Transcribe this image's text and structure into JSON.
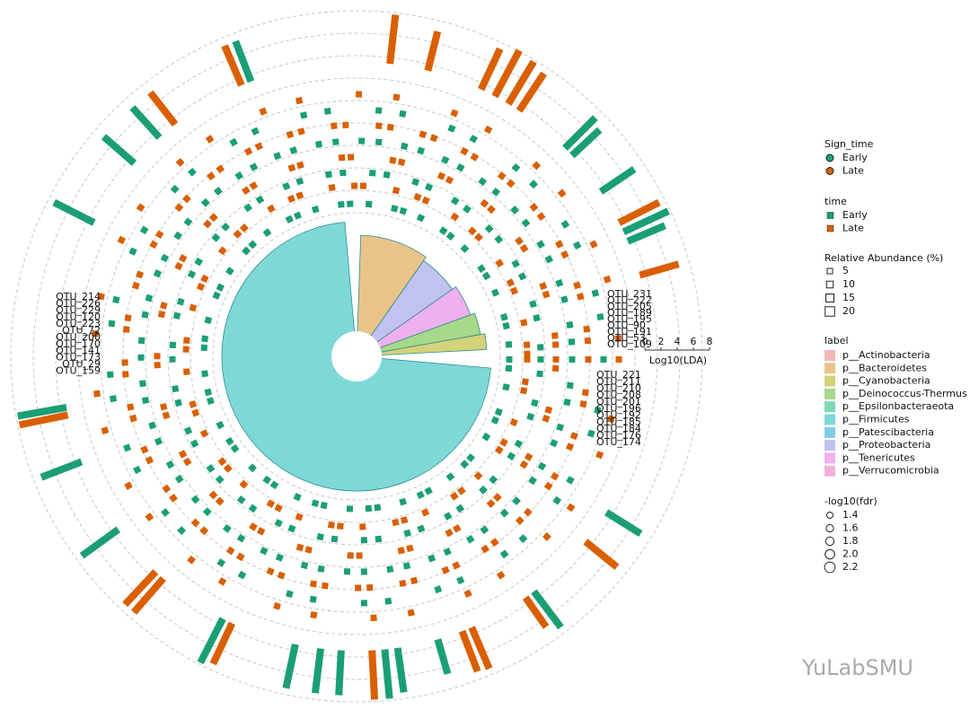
{
  "legend": {
    "sign_time": {
      "title": "Sign_time",
      "items": [
        "Early",
        "Late"
      ]
    },
    "time": {
      "title": "time",
      "items": [
        "Early",
        "Late"
      ]
    },
    "relative_abundance": {
      "title": "Relative Abundance (%)",
      "items": [
        "5",
        "10",
        "15",
        "20"
      ]
    },
    "label": {
      "title": "label",
      "items": [
        "p__Actinobacteria",
        "p__Bacteroidetes",
        "p__Cyanobacteria",
        "p__Deinococcus-Thermus",
        "p__Epsilonbacteraeota",
        "p__Firmicutes",
        "p__Patescibacteria",
        "p__Proteobacteria",
        "p__Tenericutes",
        "p__Verrucomicrobia"
      ]
    },
    "fdr": {
      "title": "-log10(fdr)",
      "items": [
        "1.4",
        "1.6",
        "1.8",
        "2.0",
        "2.2"
      ]
    }
  },
  "axis": {
    "title": "Log10(LDA)",
    "ticks": [
      "0",
      "2",
      "4",
      "6",
      "8"
    ]
  },
  "otu_labels": {
    "right_upper": [
      "OTU_231",
      "OTU_222",
      "OTU_205",
      "OTU_189",
      "OTU_195",
      "OTU_90",
      "OTU_191",
      "OTU_53",
      "OTU_109"
    ],
    "right_lower": [
      "OTU_221",
      "OTU_211",
      "OTU_210",
      "OTU_208",
      "OTU_201",
      "OTU_196",
      "OTU_192",
      "OTU_185",
      "OTU_184",
      "OTU_176",
      "OTU_174"
    ],
    "left": [
      "OTU_214",
      "OTU_226",
      "OTU_229",
      "OTU_120",
      "OTU_223",
      "OTU_72",
      "OTU_200",
      "OTU_170",
      "OTU_141",
      "OTU_173",
      "OTU_29",
      "OTU_159"
    ]
  },
  "watermark": "YuLabSMU"
}
